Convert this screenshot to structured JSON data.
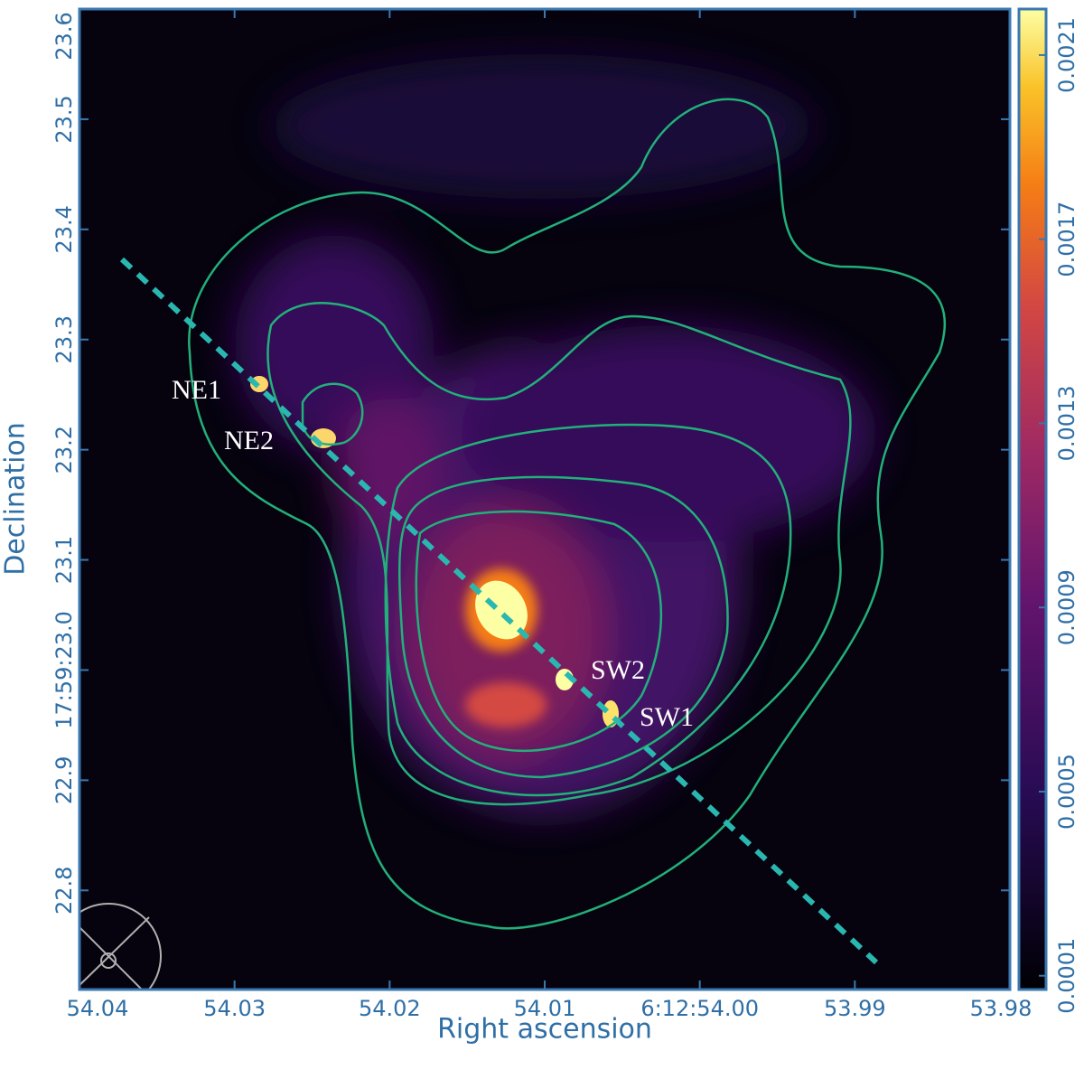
{
  "chart_data": {
    "type": "image",
    "xlabel": "Right ascension",
    "ylabel": "Declination",
    "xlim": [
      54.04,
      53.98
    ],
    "xticks": [
      54.04,
      54.03,
      54.02,
      54.01,
      {
        "value": 54.0,
        "label": "6:12:54.00"
      },
      53.99,
      53.98
    ],
    "ylim": [
      22.71,
      23.6
    ],
    "yticks": [
      23.6,
      23.5,
      23.4,
      23.3,
      23.2,
      23.1,
      {
        "value": 23.0,
        "label": "17:59:23.0"
      },
      22.9,
      22.8
    ],
    "colorbar": {
      "lim": [
        7e-05,
        0.0022
      ],
      "ticks": [
        0.0001,
        0.0005,
        0.0009,
        0.0013,
        0.0017,
        0.0021
      ]
    },
    "annotations": [
      "NE1",
      "NE2",
      "SW2",
      "SW1"
    ]
  }
}
